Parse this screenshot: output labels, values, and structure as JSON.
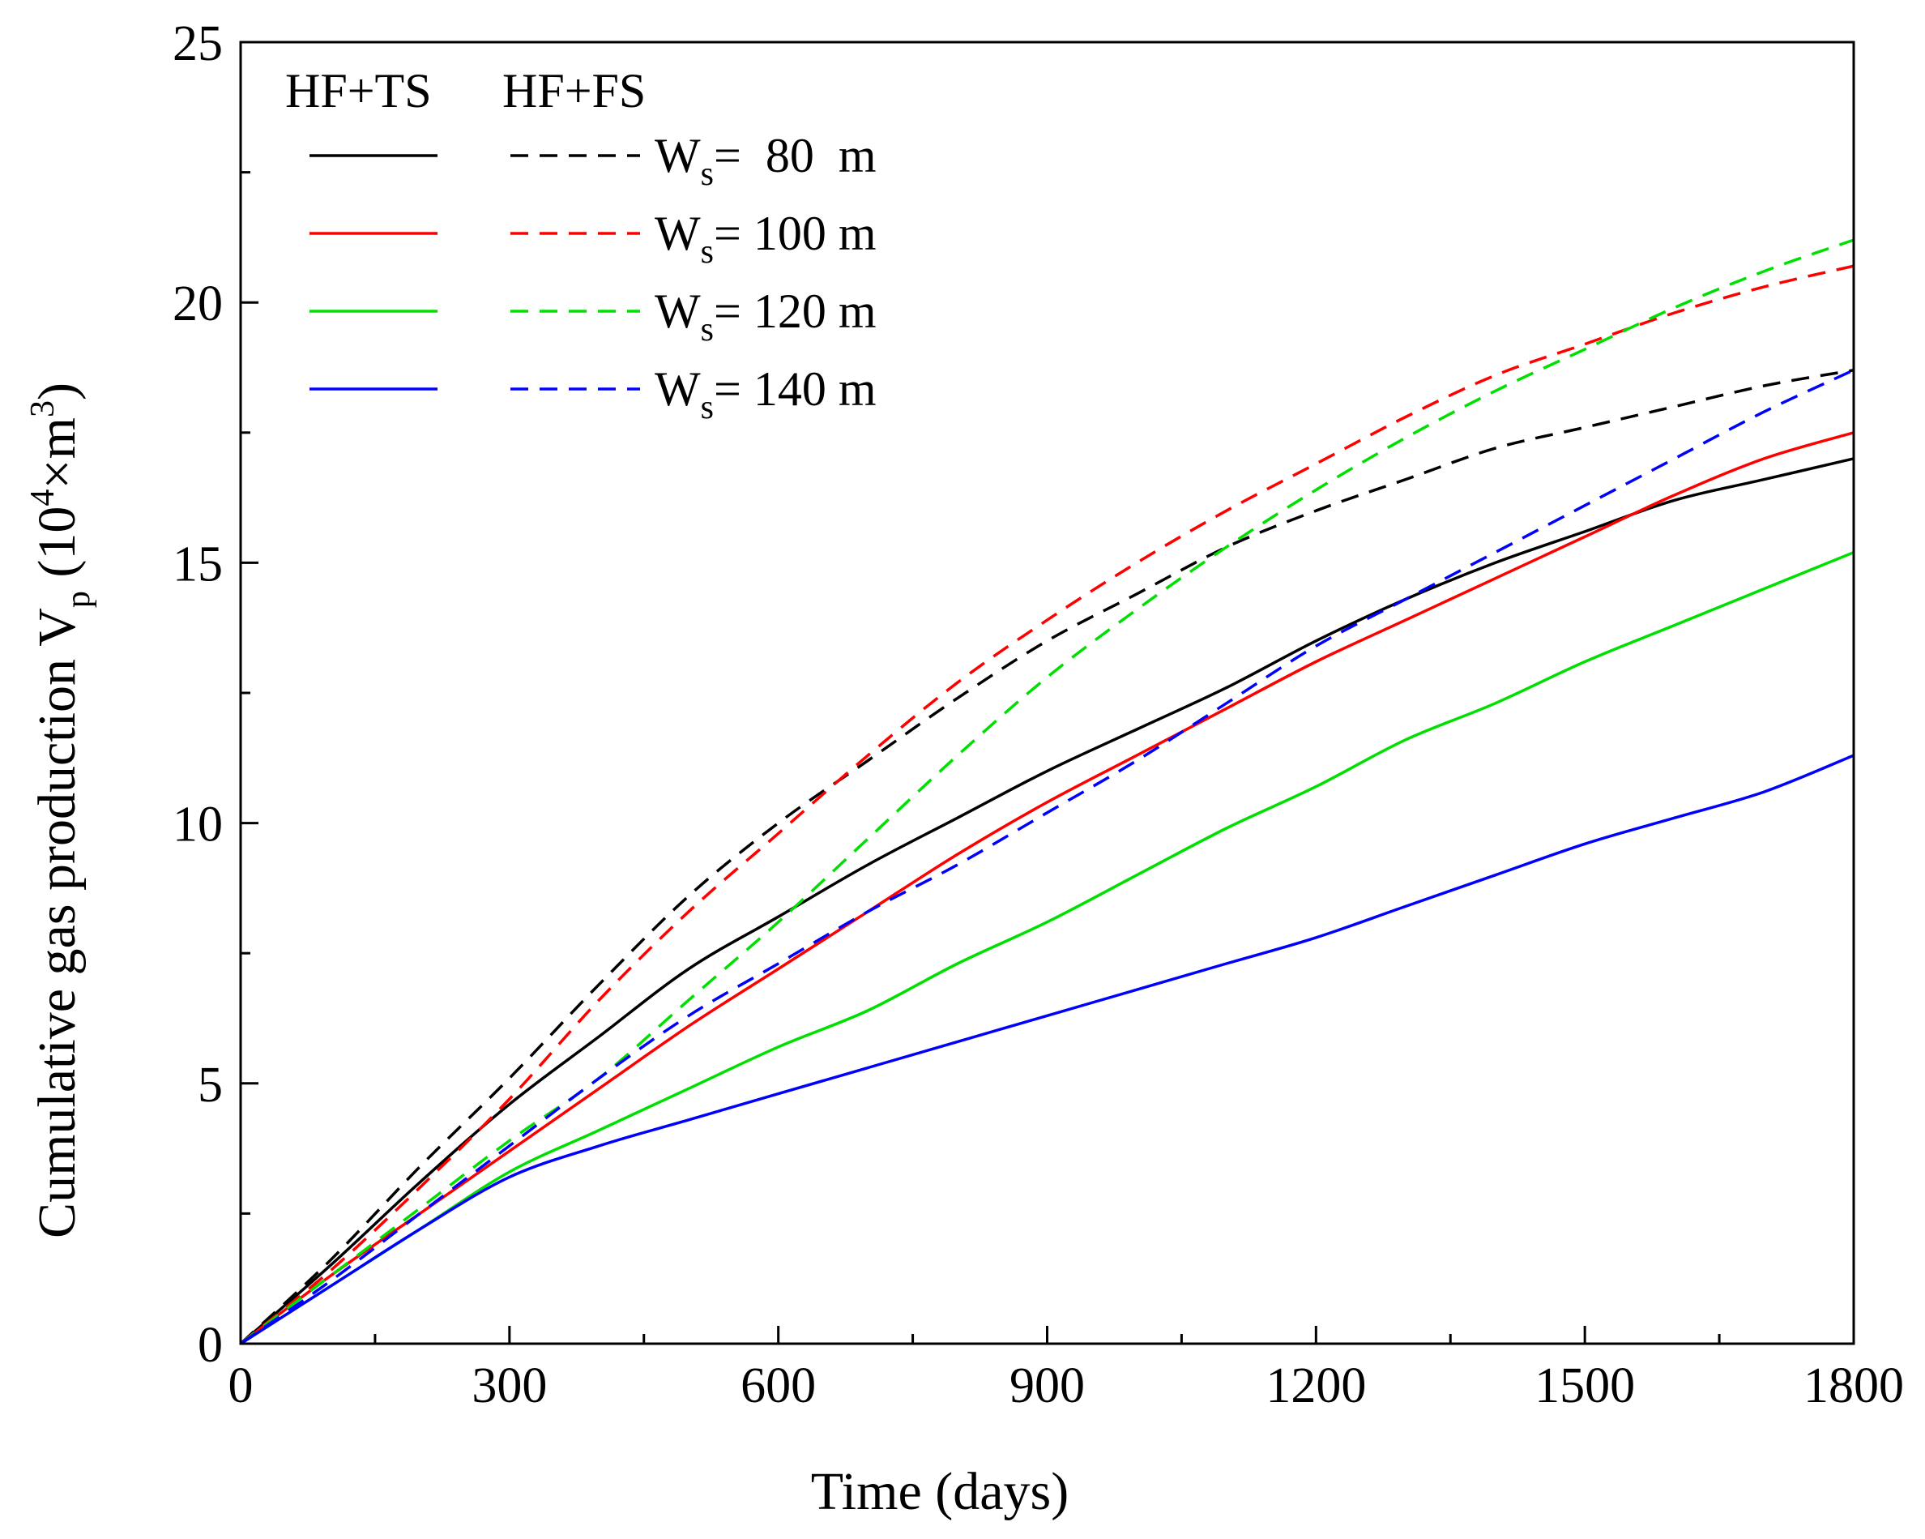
{
  "chart_data": {
    "type": "line",
    "title": "",
    "xlabel": "Time (days)",
    "ylabel": {
      "main": "Cumulative gas production V",
      "sub": "p",
      "unit_open": " (10",
      "unit_exp": "4",
      "unit_mid": "×m",
      "unit_exp2": "3",
      "unit_close": ")"
    },
    "xlim": [
      0,
      1800
    ],
    "ylim": [
      0,
      25
    ],
    "xticks": [
      0,
      300,
      600,
      900,
      1200,
      1500,
      1800
    ],
    "xtick_labels": [
      "0",
      "300",
      "600",
      "900",
      "1200",
      "1500",
      "1800"
    ],
    "yticks": [
      0,
      5,
      10,
      15,
      20,
      25
    ],
    "ytick_labels": [
      "0",
      "5",
      "10",
      "15",
      "20",
      "25"
    ],
    "legend": {
      "placement": "top-left",
      "group_headers": [
        "HF+TS",
        "HF+FS"
      ],
      "entries": [
        {
          "prefix": "W",
          "sub": "s",
          "suffix": "=  80  m",
          "color": "#000000"
        },
        {
          "prefix": "W",
          "sub": "s",
          "suffix": "= 100 m",
          "color": "#ff0000"
        },
        {
          "prefix": "W",
          "sub": "s",
          "suffix": "= 120 m",
          "color": "#00e000"
        },
        {
          "prefix": "W",
          "sub": "s",
          "suffix": "= 140 m",
          "color": "#0000ff"
        }
      ]
    },
    "x": [
      0,
      100,
      200,
      300,
      400,
      500,
      600,
      700,
      800,
      900,
      1000,
      1100,
      1200,
      1300,
      1400,
      1500,
      1600,
      1700,
      1800
    ],
    "series": [
      {
        "name": "HF+TS, Ws=80 m",
        "color": "#000000",
        "dash": "solid",
        "values": [
          0,
          1.5,
          3.1,
          4.6,
          5.9,
          7.2,
          8.2,
          9.2,
          10.1,
          11.0,
          11.8,
          12.6,
          13.5,
          14.3,
          15.0,
          15.6,
          16.2,
          16.6,
          17.0
        ]
      },
      {
        "name": "HF+FS, Ws=80 m",
        "color": "#000000",
        "dash": "dashed",
        "values": [
          0,
          1.6,
          3.4,
          5.1,
          6.9,
          8.6,
          10.0,
          11.2,
          12.4,
          13.5,
          14.4,
          15.3,
          16.0,
          16.6,
          17.2,
          17.6,
          18.0,
          18.4,
          18.7
        ]
      },
      {
        "name": "HF+TS, Ws=100 m",
        "color": "#ff0000",
        "dash": "solid",
        "values": [
          0,
          1.3,
          2.5,
          3.7,
          4.9,
          6.1,
          7.2,
          8.3,
          9.4,
          10.4,
          11.3,
          12.2,
          13.1,
          13.9,
          14.7,
          15.5,
          16.3,
          17.0,
          17.5
        ]
      },
      {
        "name": "HF+FS, Ws=100 m",
        "color": "#ff0000",
        "dash": "dashed",
        "values": [
          0,
          1.4,
          3.0,
          4.7,
          6.6,
          8.3,
          9.8,
          11.3,
          12.7,
          13.9,
          15.0,
          16.0,
          16.9,
          17.8,
          18.6,
          19.2,
          19.8,
          20.3,
          20.7
        ]
      },
      {
        "name": "HF+TS, Ws=120 m",
        "color": "#00e000",
        "dash": "solid",
        "values": [
          0,
          1.1,
          2.2,
          3.3,
          4.1,
          4.9,
          5.7,
          6.4,
          7.3,
          8.1,
          9.0,
          9.9,
          10.7,
          11.6,
          12.3,
          13.1,
          13.8,
          14.5,
          15.2
        ]
      },
      {
        "name": "HF+FS, Ws=120 m",
        "color": "#00e000",
        "dash": "dashed",
        "values": [
          0,
          1.3,
          2.6,
          3.9,
          5.1,
          6.6,
          8.1,
          9.7,
          11.3,
          12.8,
          14.1,
          15.3,
          16.4,
          17.4,
          18.3,
          19.1,
          19.9,
          20.6,
          21.2
        ]
      },
      {
        "name": "HF+TS, Ws=140 m",
        "color": "#0000ff",
        "dash": "solid",
        "values": [
          0,
          1.1,
          2.2,
          3.2,
          3.8,
          4.3,
          4.8,
          5.3,
          5.8,
          6.3,
          6.8,
          7.3,
          7.8,
          8.4,
          9.0,
          9.6,
          10.1,
          10.6,
          11.3
        ]
      },
      {
        "name": "HF+FS, Ws=140 m",
        "color": "#0000ff",
        "dash": "dashed",
        "values": [
          0,
          1.2,
          2.5,
          3.8,
          5.1,
          6.3,
          7.3,
          8.3,
          9.2,
          10.2,
          11.2,
          12.3,
          13.4,
          14.3,
          15.2,
          16.1,
          17.0,
          17.9,
          18.7
        ]
      }
    ]
  }
}
